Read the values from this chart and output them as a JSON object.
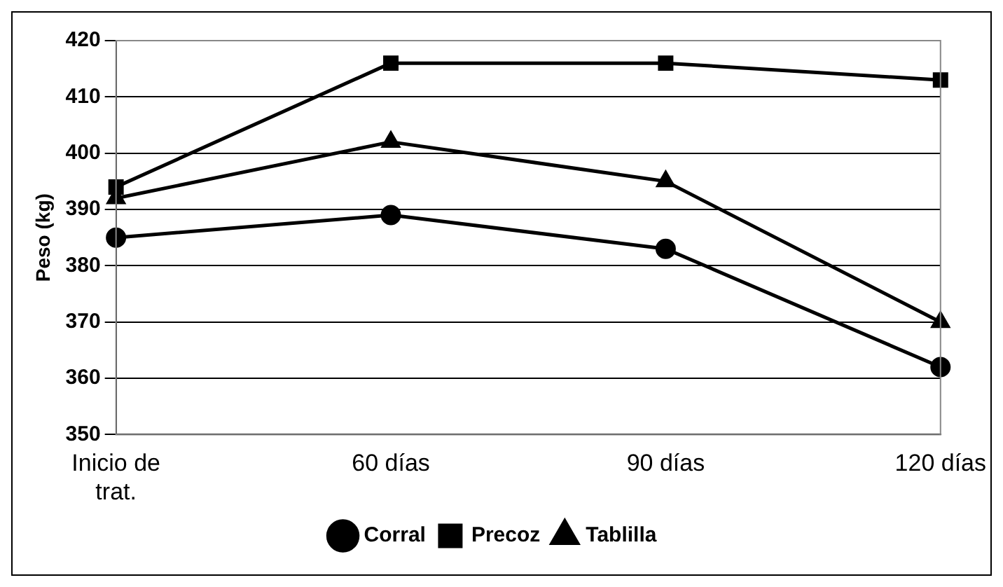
{
  "chart_data": {
    "type": "line",
    "ylabel": "Peso (kg)",
    "categories": [
      "Inicio de trat.",
      "60 días",
      "90 días",
      "120 días"
    ],
    "series": [
      {
        "name": "Corral",
        "color": "#000000",
        "marker": "circle",
        "values": [
          385,
          389,
          383,
          362
        ]
      },
      {
        "name": "Precoz",
        "color": "#000000",
        "marker": "square",
        "values": [
          394,
          416,
          416,
          413
        ]
      },
      {
        "name": "Tablilla",
        "color": "#000000",
        "marker": "triangle",
        "values": [
          392,
          402,
          395,
          370
        ]
      }
    ],
    "ylim": [
      350,
      420
    ],
    "yticks": [
      350,
      360,
      370,
      380,
      390,
      400,
      410,
      420
    ],
    "grid": "y",
    "legend": "bottom",
    "line_style": "solid"
  }
}
